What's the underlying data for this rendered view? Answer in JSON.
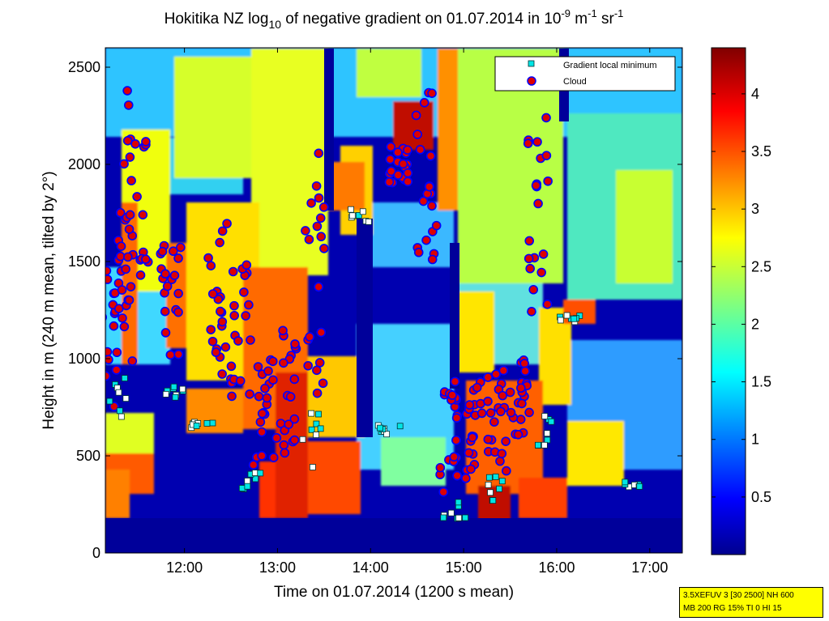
{
  "chart_data": [
    {
      "type": "heatmap",
      "title": "Hokitika NZ log10 of negative gradient on 01.07.2014 in 10-9 m-1 sr-1",
      "title_parts": {
        "prefix": "Hokitika NZ log",
        "log_base": "10",
        "middle": " of negative gradient on 01.07.2014 in 10",
        "exp1": "-9",
        "m": " m",
        "exp2": "-1",
        "sr": " sr",
        "exp3": "-1"
      },
      "xlabel": "Time on 01.07.2014 (1200 s mean)",
      "ylabel": "Height in m (240 m mean, tilted by 2°)",
      "xlim_hours": [
        11.15,
        17.35
      ],
      "ylim": [
        0,
        2600
      ],
      "x_ticks": [
        {
          "value": 12,
          "label": "12:00"
        },
        {
          "value": 13,
          "label": "13:00"
        },
        {
          "value": 14,
          "label": "14:00"
        },
        {
          "value": 15,
          "label": "15:00"
        },
        {
          "value": 16,
          "label": "16:00"
        },
        {
          "value": 17,
          "label": "17:00"
        }
      ],
      "y_ticks": [
        {
          "value": 0,
          "label": "0"
        },
        {
          "value": 500,
          "label": "500"
        },
        {
          "value": 1000,
          "label": "1000"
        },
        {
          "value": 1500,
          "label": "1500"
        },
        {
          "value": 2000,
          "label": "2000"
        },
        {
          "value": 2500,
          "label": "2500"
        }
      ],
      "legend": {
        "placement": "top-right",
        "entries": [
          {
            "label": "Gradient local minimum",
            "marker": "square",
            "color": "#00e5e5"
          },
          {
            "label": "Cloud",
            "marker": "circle",
            "color": "#dd0000"
          }
        ]
      },
      "colormap": "jet",
      "grid": false
    },
    {
      "type": "colorbar",
      "clim": [
        0,
        4.4
      ],
      "ticks": [
        {
          "value": 0.5,
          "label": "0.5"
        },
        {
          "value": 1,
          "label": "1"
        },
        {
          "value": 1.5,
          "label": "1.5"
        },
        {
          "value": 2,
          "label": "2"
        },
        {
          "value": 2.5,
          "label": "2.5"
        },
        {
          "value": 3,
          "label": "3"
        },
        {
          "value": 3.5,
          "label": "3.5"
        },
        {
          "value": 4,
          "label": "4"
        }
      ]
    }
  ],
  "info_box": {
    "line1": "3.5XEFUV 3 [30 2500] NH 600",
    "line2": "MB 200 RG 15% TI 0 HI 15",
    "color": "#ffff00"
  }
}
